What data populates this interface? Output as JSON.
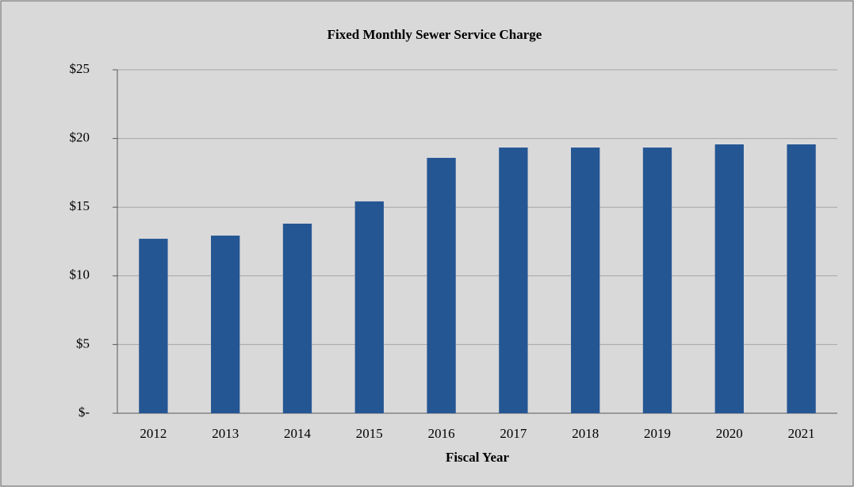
{
  "chart_data": {
    "type": "bar",
    "title": "Fixed Monthly Sewer Service Charge",
    "x_label": "Fiscal Year",
    "categories": [
      "2012",
      "2013",
      "2014",
      "2015",
      "2016",
      "2017",
      "2018",
      "2019",
      "2020",
      "2021"
    ],
    "values": [
      12.7,
      12.93,
      13.8,
      15.42,
      18.59,
      19.34,
      19.34,
      19.34,
      19.57,
      19.57
    ],
    "color": "#255694",
    "ylim": [
      0,
      25
    ],
    "yticks": [
      {
        "value": 0,
        "label": "$-"
      },
      {
        "value": 5,
        "label": "$5"
      },
      {
        "value": 10,
        "label": "$10"
      },
      {
        "value": 15,
        "label": "$15"
      },
      {
        "value": 20,
        "label": "$20"
      },
      {
        "value": 25,
        "label": "$25"
      }
    ],
    "grid": true
  }
}
